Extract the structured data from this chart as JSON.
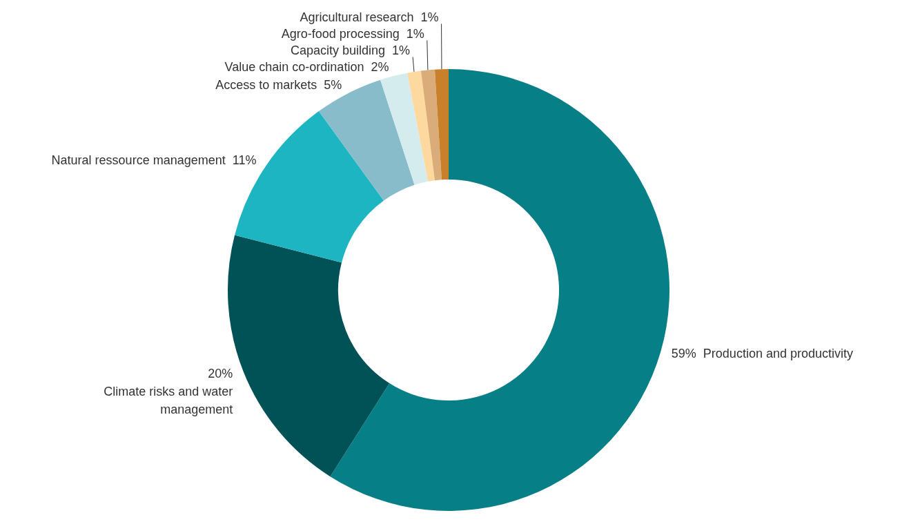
{
  "chart_data": {
    "type": "donut",
    "categories": [
      "Production and productivity",
      "Climate risks and water management",
      "Natural ressource management",
      "Access to markets",
      "Value chain co-ordination",
      "Capacity building",
      "Agro-food processing",
      "Agricultural research"
    ],
    "values": [
      59,
      20,
      11,
      5,
      2,
      1,
      1,
      1
    ],
    "value_labels": [
      "59%",
      "20%",
      "11%",
      "5%",
      "2%",
      "1%",
      "1%",
      "1%"
    ],
    "colors": [
      "#077f86",
      "#005257",
      "#1db5c1",
      "#88bcca",
      "#d5ecee",
      "#fdd9a0",
      "#d9ac7a",
      "#c8802a"
    ]
  }
}
